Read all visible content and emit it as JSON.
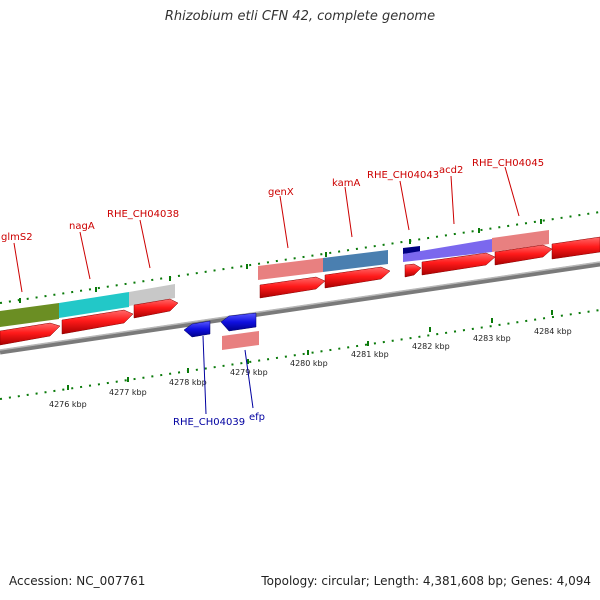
{
  "title": "Rhizobium etli CFN 42, complete genome",
  "footer": {
    "accession": "Accession: NC_007761",
    "summary": "Topology: circular; Length: 4,381,608 bp; Genes: 4,094"
  },
  "colors": {
    "backbone": "#8a8a8a",
    "forward_gene": "#e60000",
    "reverse_gene": "#0000d0",
    "forward_label": "#cc0000",
    "reverse_label": "#0000a0",
    "tick": "#0a7a0a",
    "kbp_label": "#222222"
  },
  "scale": {
    "ticks": [
      "4276 kbp",
      "4277 kbp",
      "4278 kbp",
      "4279 kbp",
      "4280 kbp",
      "4281 kbp",
      "4282 kbp",
      "4283 kbp",
      "4284 kbp"
    ]
  },
  "forward_labels": [
    "glmS2",
    "nagA",
    "RHE_CH04038",
    "genX",
    "kamA",
    "RHE_CH04043",
    "acd2",
    "RHE_CH04045"
  ],
  "reverse_labels": [
    "RHE_CH04039",
    "efp"
  ],
  "cog_colors": [
    "#6b8e23",
    "#22c8c8",
    "#c0c0c0",
    "#e88080",
    "#4a7fb0",
    "#000080",
    "#7b68ee",
    "#e88080"
  ]
}
